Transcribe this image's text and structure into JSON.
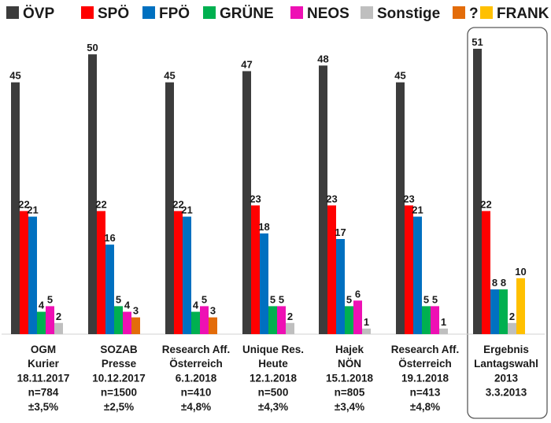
{
  "chart_data": {
    "type": "bar",
    "series": [
      {
        "name": "ÖVP",
        "color": "#3c3c3c",
        "values": [
          45,
          50,
          45,
          47,
          48,
          45,
          51
        ]
      },
      {
        "name": "SPÖ",
        "color": "#ff0000",
        "values": [
          22,
          22,
          22,
          23,
          23,
          23,
          22
        ]
      },
      {
        "name": "FPÖ",
        "color": "#0070c0",
        "values": [
          21,
          16,
          21,
          18,
          17,
          21,
          8
        ]
      },
      {
        "name": "GRÜNE",
        "color": "#00b050",
        "values": [
          4,
          5,
          4,
          5,
          5,
          5,
          8
        ]
      },
      {
        "name": "NEOS",
        "color": "#ee10b4",
        "values": [
          5,
          4,
          5,
          5,
          6,
          5,
          null
        ]
      },
      {
        "name": "Sonstige",
        "color": "#bfbfbf",
        "values": [
          2,
          null,
          null,
          2,
          1,
          1,
          2
        ]
      },
      {
        "name": "?",
        "color": "#e36c0a",
        "values": [
          null,
          3,
          3,
          null,
          null,
          null,
          null
        ]
      },
      {
        "name": "FRANK",
        "color": "#ffc000",
        "values": [
          null,
          null,
          null,
          null,
          null,
          null,
          10
        ]
      }
    ],
    "categories": [
      {
        "lines": [
          "OGM",
          "Kurier",
          "18.11.2017",
          "n=784",
          "±3,5%"
        ]
      },
      {
        "lines": [
          "SOZAB",
          "Presse",
          "10.12.2017",
          "n=1500",
          "±2,5%"
        ]
      },
      {
        "lines": [
          "Research Aff.",
          "Österreich",
          "6.1.2018",
          "n=410",
          "±4,8%"
        ]
      },
      {
        "lines": [
          "Unique Res.",
          "Heute",
          "12.1.2018",
          "n=500",
          "±4,3%"
        ]
      },
      {
        "lines": [
          "Hajek",
          "NÖN",
          "15.1.2018",
          "n=805",
          "±3,4%"
        ]
      },
      {
        "lines": [
          "Research Aff.",
          "Österreich",
          "19.1.2018",
          "n=413",
          "±4,8%"
        ]
      },
      {
        "lines": [
          "Ergebnis",
          "Lantagswahl",
          "2013",
          "3.3.2013"
        ]
      }
    ],
    "highlighted_category": 6,
    "legend_position": "top",
    "grid": false,
    "ylim": [
      0,
      51
    ]
  }
}
